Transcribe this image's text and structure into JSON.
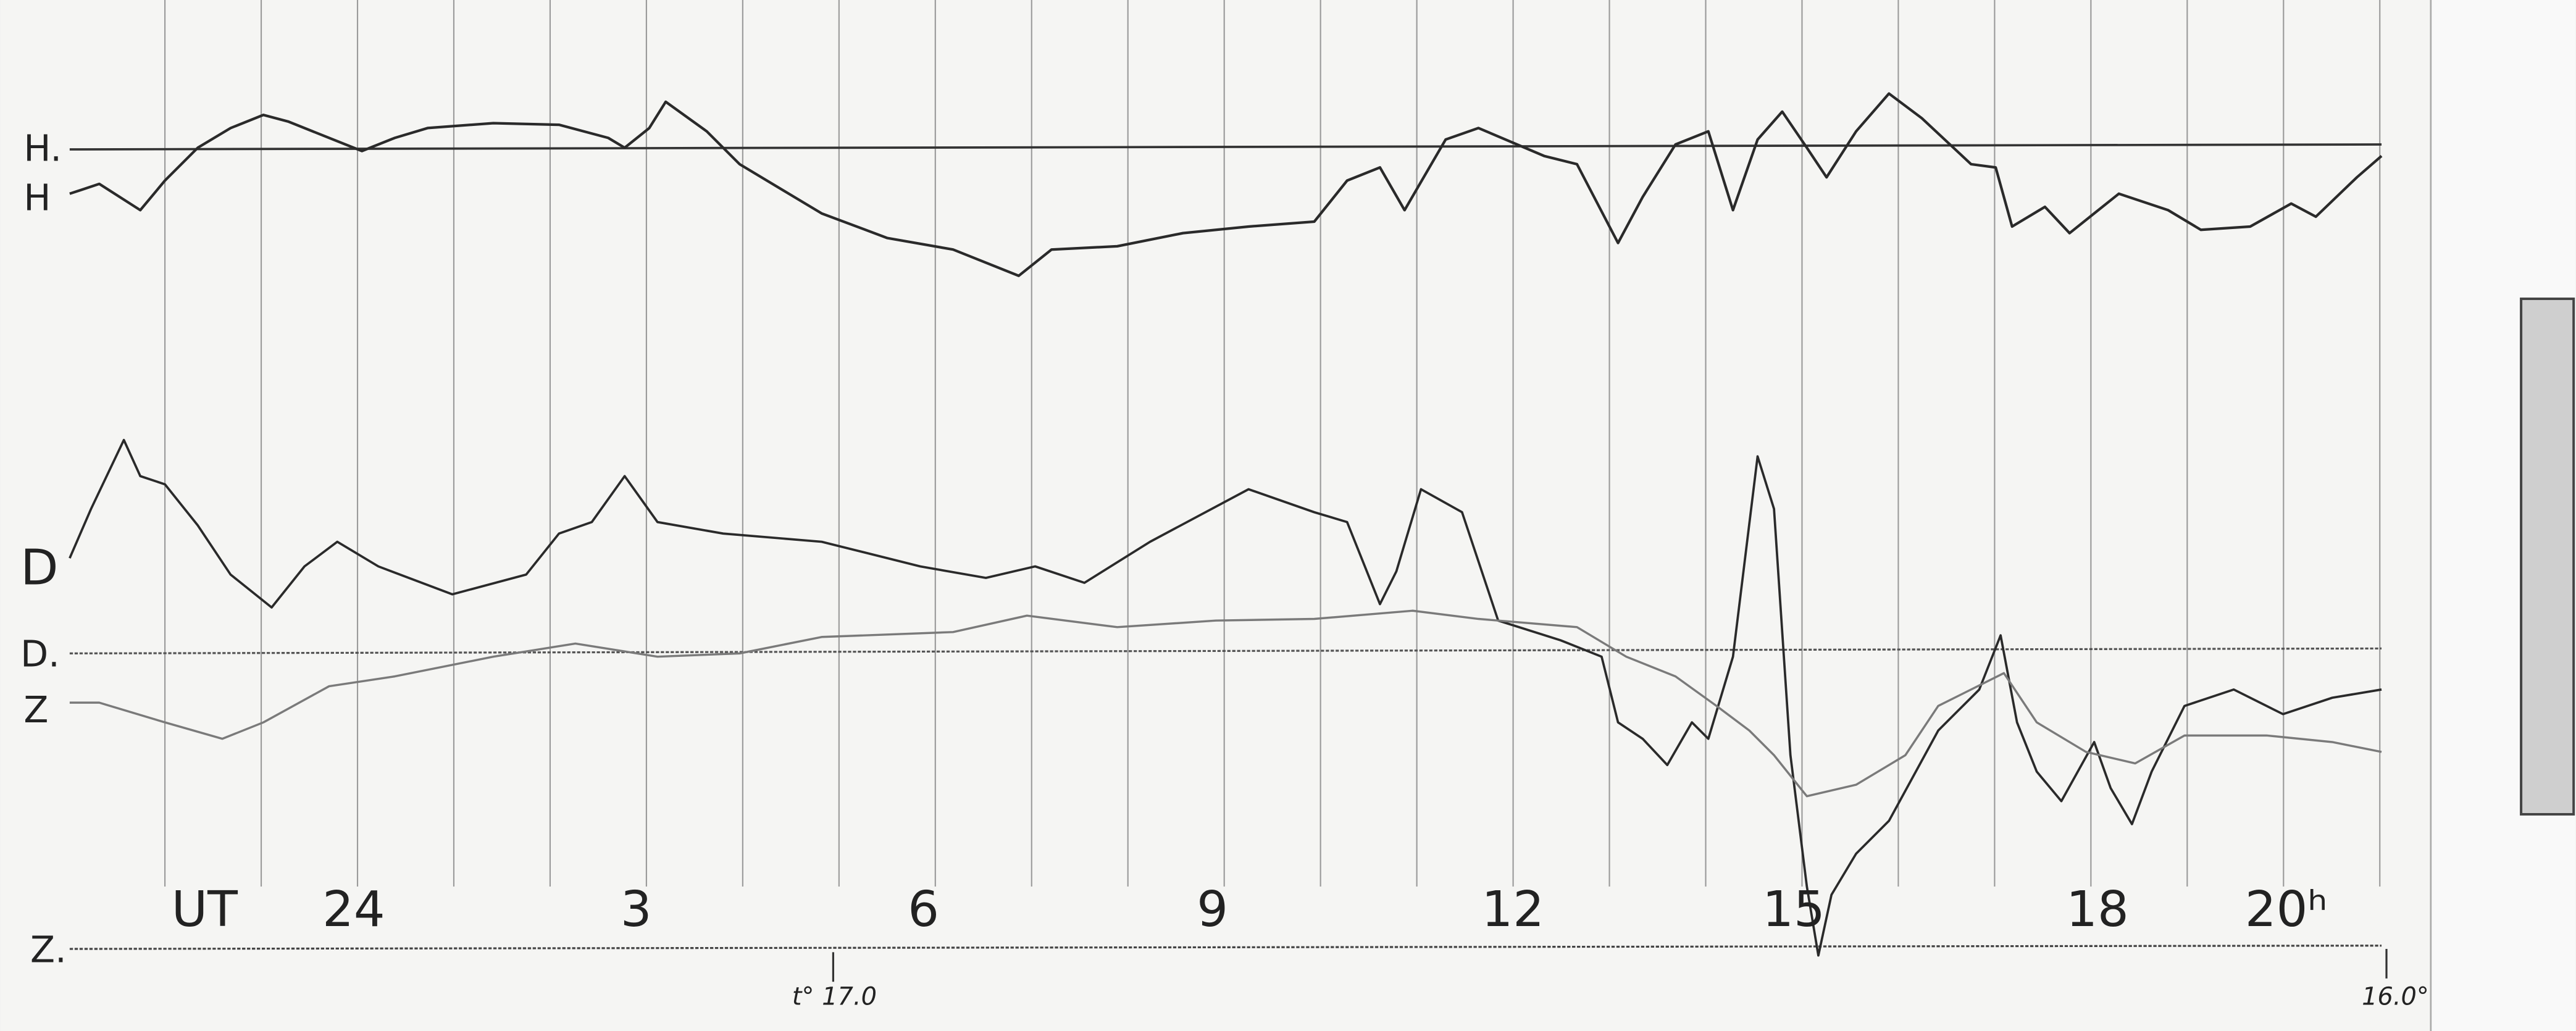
{
  "labels": {
    "h_base": "H.",
    "h": "H",
    "d": "D",
    "d_base": "D.",
    "z": "Z",
    "z_base": "Z.",
    "ut": "UT"
  },
  "hours": [
    "24",
    "3",
    "6",
    "9",
    "12",
    "15",
    "18",
    "20ʰ"
  ],
  "temperature_start": "t° 17.0",
  "temperature_end": "16.0°"
}
